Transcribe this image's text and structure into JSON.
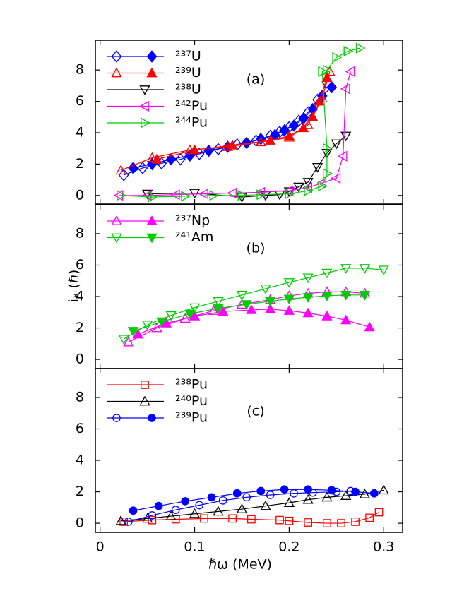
{
  "chart_data": {
    "type": "line",
    "x_label": "ℏω (MeV)",
    "y_label": "iₓ (ℏ)",
    "xlim": [
      -0.005,
      0.32
    ],
    "xticks": [
      0,
      0.1,
      0.2,
      0.3
    ],
    "panels": [
      {
        "label": "(a)",
        "ylim": [
          -0.55,
          9.9
        ],
        "yticks": [
          0,
          2,
          4,
          6,
          8
        ],
        "series": [
          {
            "name": "²³⁷U",
            "color": "#0000ff",
            "marker": "diamond",
            "branches": [
              {
                "filled": false,
                "x": [
                  0.025,
                  0.045,
                  0.065,
                  0.085,
                  0.105,
                  0.125,
                  0.145,
                  0.165,
                  0.18,
                  0.19,
                  0.2,
                  0.21,
                  0.22,
                  0.23,
                  0.24
                ],
                "values": [
                  1.3,
                  1.75,
                  2.05,
                  2.3,
                  2.65,
                  2.95,
                  3.25,
                  3.5,
                  3.8,
                  4.05,
                  4.35,
                  4.75,
                  5.3,
                  6.1,
                  7.2
                ]
              },
              {
                "filled": true,
                "x": [
                  0.035,
                  0.055,
                  0.075,
                  0.095,
                  0.115,
                  0.135,
                  0.155,
                  0.17,
                  0.185,
                  0.195,
                  0.205,
                  0.215,
                  0.225,
                  0.235,
                  0.245
                ],
                "values": [
                  1.75,
                  2.0,
                  2.3,
                  2.55,
                  2.85,
                  3.1,
                  3.35,
                  3.6,
                  3.85,
                  4.15,
                  4.45,
                  4.9,
                  5.5,
                  6.35,
                  6.9
                ]
              }
            ]
          },
          {
            "name": "²³⁹U",
            "color": "#ff0000",
            "marker": "triangle-up",
            "branches": [
              {
                "filled": false,
                "x": [
                  0.022,
                  0.055,
                  0.095,
                  0.135,
                  0.17,
                  0.2,
                  0.22,
                  0.235,
                  0.243
                ],
                "values": [
                  1.6,
                  2.4,
                  2.9,
                  3.1,
                  3.4,
                  3.7,
                  4.5,
                  6.2,
                  7.9
                ]
              },
              {
                "filled": true,
                "x": [
                  0.06,
                  0.1,
                  0.14,
                  0.18,
                  0.2,
                  0.215,
                  0.225,
                  0.232,
                  0.24
                ],
                "values": [
                  2.3,
                  2.9,
                  3.2,
                  3.5,
                  3.8,
                  4.3,
                  5.0,
                  6.0,
                  7.5
                ]
              }
            ]
          },
          {
            "name": "²³⁸U",
            "color": "#000000",
            "marker": "triangle-down",
            "branches": [
              {
                "filled": false,
                "x": [
                  0.05,
                  0.1,
                  0.15,
                  0.175,
                  0.19,
                  0.2,
                  0.21,
                  0.22,
                  0.23,
                  0.24,
                  0.25,
                  0.26
                ],
                "values": [
                  0.1,
                  0.15,
                  -0.1,
                  0,
                  0.05,
                  0.25,
                  0.55,
                  0.85,
                  1.8,
                  2.7,
                  3.3,
                  3.8
                ]
              }
            ]
          },
          {
            "name": "²⁴²Pu",
            "color": "#ff00ff",
            "marker": "triangle-left",
            "branches": [
              {
                "filled": false,
                "x": [
                  0.02,
                  0.05,
                  0.08,
                  0.11,
                  0.14,
                  0.17,
                  0.2,
                  0.22,
                  0.235,
                  0.25,
                  0.257,
                  0.26,
                  0.265
                ],
                "values": [
                  0,
                  0,
                  0.05,
                  0.1,
                  0.15,
                  0.2,
                  0.3,
                  0.5,
                  0.8,
                  1.1,
                  2.5,
                  6.8,
                  7.9
                ]
              }
            ]
          },
          {
            "name": "²⁴⁴Pu",
            "color": "#00cc00",
            "marker": "triangle-right",
            "branches": [
              {
                "filled": false,
                "x": [
                  0.022,
                  0.055,
                  0.09,
                  0.12,
                  0.15,
                  0.17,
                  0.2,
                  0.22,
                  0.235,
                  0.24,
                  0.24,
                  0.235,
                  0.24,
                  0.25,
                  0.262,
                  0.275
                ],
                "values": [
                  0,
                  -0.1,
                  -0.05,
                  0,
                  0,
                  0.05,
                  0.1,
                  0.3,
                  0.6,
                  1.4,
                  3,
                  7.9,
                  8,
                  8.8,
                  9.2,
                  9.4
                ]
              }
            ]
          }
        ]
      },
      {
        "label": "(b)",
        "ylim": [
          -0.58,
          9.84
        ],
        "yticks": [
          0,
          2,
          4,
          6,
          8
        ],
        "series": [
          {
            "name": "²³⁷Np",
            "color": "#ff00ff",
            "marker": "triangle-up",
            "branches": [
              {
                "filled": false,
                "x": [
                  0.03,
                  0.06,
                  0.09,
                  0.12,
                  0.15,
                  0.18,
                  0.2,
                  0.22,
                  0.24,
                  0.26,
                  0.28
                ],
                "values": [
                  1.1,
                  2.0,
                  2.6,
                  3.1,
                  3.5,
                  3.8,
                  4.05,
                  4.2,
                  4.3,
                  4.3,
                  4.2
                ]
              },
              {
                "filled": true,
                "x": [
                  0.04,
                  0.07,
                  0.1,
                  0.13,
                  0.16,
                  0.18,
                  0.2,
                  0.22,
                  0.24,
                  0.26,
                  0.285
                ],
                "values": [
                  1.6,
                  2.3,
                  2.75,
                  3.05,
                  3.15,
                  3.2,
                  3.1,
                  2.95,
                  2.75,
                  2.5,
                  2.05
                ]
              }
            ]
          },
          {
            "name": "²⁴¹Am",
            "color": "#00cc00",
            "marker": "triangle-down",
            "branches": [
              {
                "filled": false,
                "x": [
                  0.025,
                  0.05,
                  0.075,
                  0.1,
                  0.125,
                  0.15,
                  0.175,
                  0.2,
                  0.22,
                  0.24,
                  0.26,
                  0.28,
                  0.3
                ],
                "values": [
                  1.3,
                  2.2,
                  2.8,
                  3.3,
                  3.7,
                  4.1,
                  4.5,
                  4.9,
                  5.2,
                  5.5,
                  5.8,
                  5.8,
                  5.7
                ]
              },
              {
                "filled": true,
                "x": [
                  0.035,
                  0.065,
                  0.095,
                  0.125,
                  0.155,
                  0.18,
                  0.2,
                  0.22,
                  0.24,
                  0.26,
                  0.28
                ],
                "values": [
                  1.8,
                  2.4,
                  2.9,
                  3.25,
                  3.5,
                  3.7,
                  3.85,
                  3.95,
                  4.05,
                  4.1,
                  4.1
                ]
              }
            ]
          }
        ]
      },
      {
        "label": "(c)",
        "ylim": [
          -0.58,
          9.84
        ],
        "yticks": [
          0,
          2,
          4,
          6,
          8
        ],
        "series": [
          {
            "name": "²³⁸Pu",
            "color": "#ff0000",
            "marker": "square",
            "branches": [
              {
                "filled": false,
                "x": [
                  0.025,
                  0.055,
                  0.08,
                  0.11,
                  0.14,
                  0.16,
                  0.19,
                  0.2,
                  0.22,
                  0.24,
                  0.255,
                  0.27,
                  0.285,
                  0.295
                ],
                "values": [
                  0.1,
                  0.2,
                  0.25,
                  0.3,
                  0.3,
                  0.25,
                  0.2,
                  0.15,
                  0.05,
                  0,
                  0,
                  0.1,
                  0.35,
                  0.7
                ]
              }
            ]
          },
          {
            "name": "²⁴⁰Pu",
            "color": "#000000",
            "marker": "triangle-up",
            "branches": [
              {
                "filled": false,
                "x": [
                  0.022,
                  0.05,
                  0.075,
                  0.1,
                  0.125,
                  0.15,
                  0.175,
                  0.2,
                  0.22,
                  0.24,
                  0.26,
                  0.28,
                  0.3
                ],
                "values": [
                  0.15,
                  0.3,
                  0.45,
                  0.6,
                  0.75,
                  0.9,
                  1.1,
                  1.3,
                  1.5,
                  1.65,
                  1.75,
                  1.85,
                  2.1
                ]
              }
            ]
          },
          {
            "name": "²³⁹Pu",
            "color": "#0000ff",
            "marker": "circle",
            "branches": [
              {
                "filled": false,
                "x": [
                  0.03,
                  0.055,
                  0.08,
                  0.105,
                  0.13,
                  0.155,
                  0.18,
                  0.205,
                  0.225,
                  0.25,
                  0.265
                ],
                "values": [
                  0.1,
                  0.5,
                  0.85,
                  1.15,
                  1.45,
                  1.65,
                  1.8,
                  1.9,
                  1.95,
                  2.0,
                  2.05
                ]
              },
              {
                "filled": true,
                "x": [
                  0.035,
                  0.062,
                  0.09,
                  0.118,
                  0.145,
                  0.17,
                  0.195,
                  0.22,
                  0.245,
                  0.27,
                  0.29
                ],
                "values": [
                  0.8,
                  1.1,
                  1.4,
                  1.65,
                  1.9,
                  2.05,
                  2.15,
                  2.15,
                  2.1,
                  2.0,
                  1.9
                ]
              }
            ]
          }
        ]
      }
    ]
  }
}
